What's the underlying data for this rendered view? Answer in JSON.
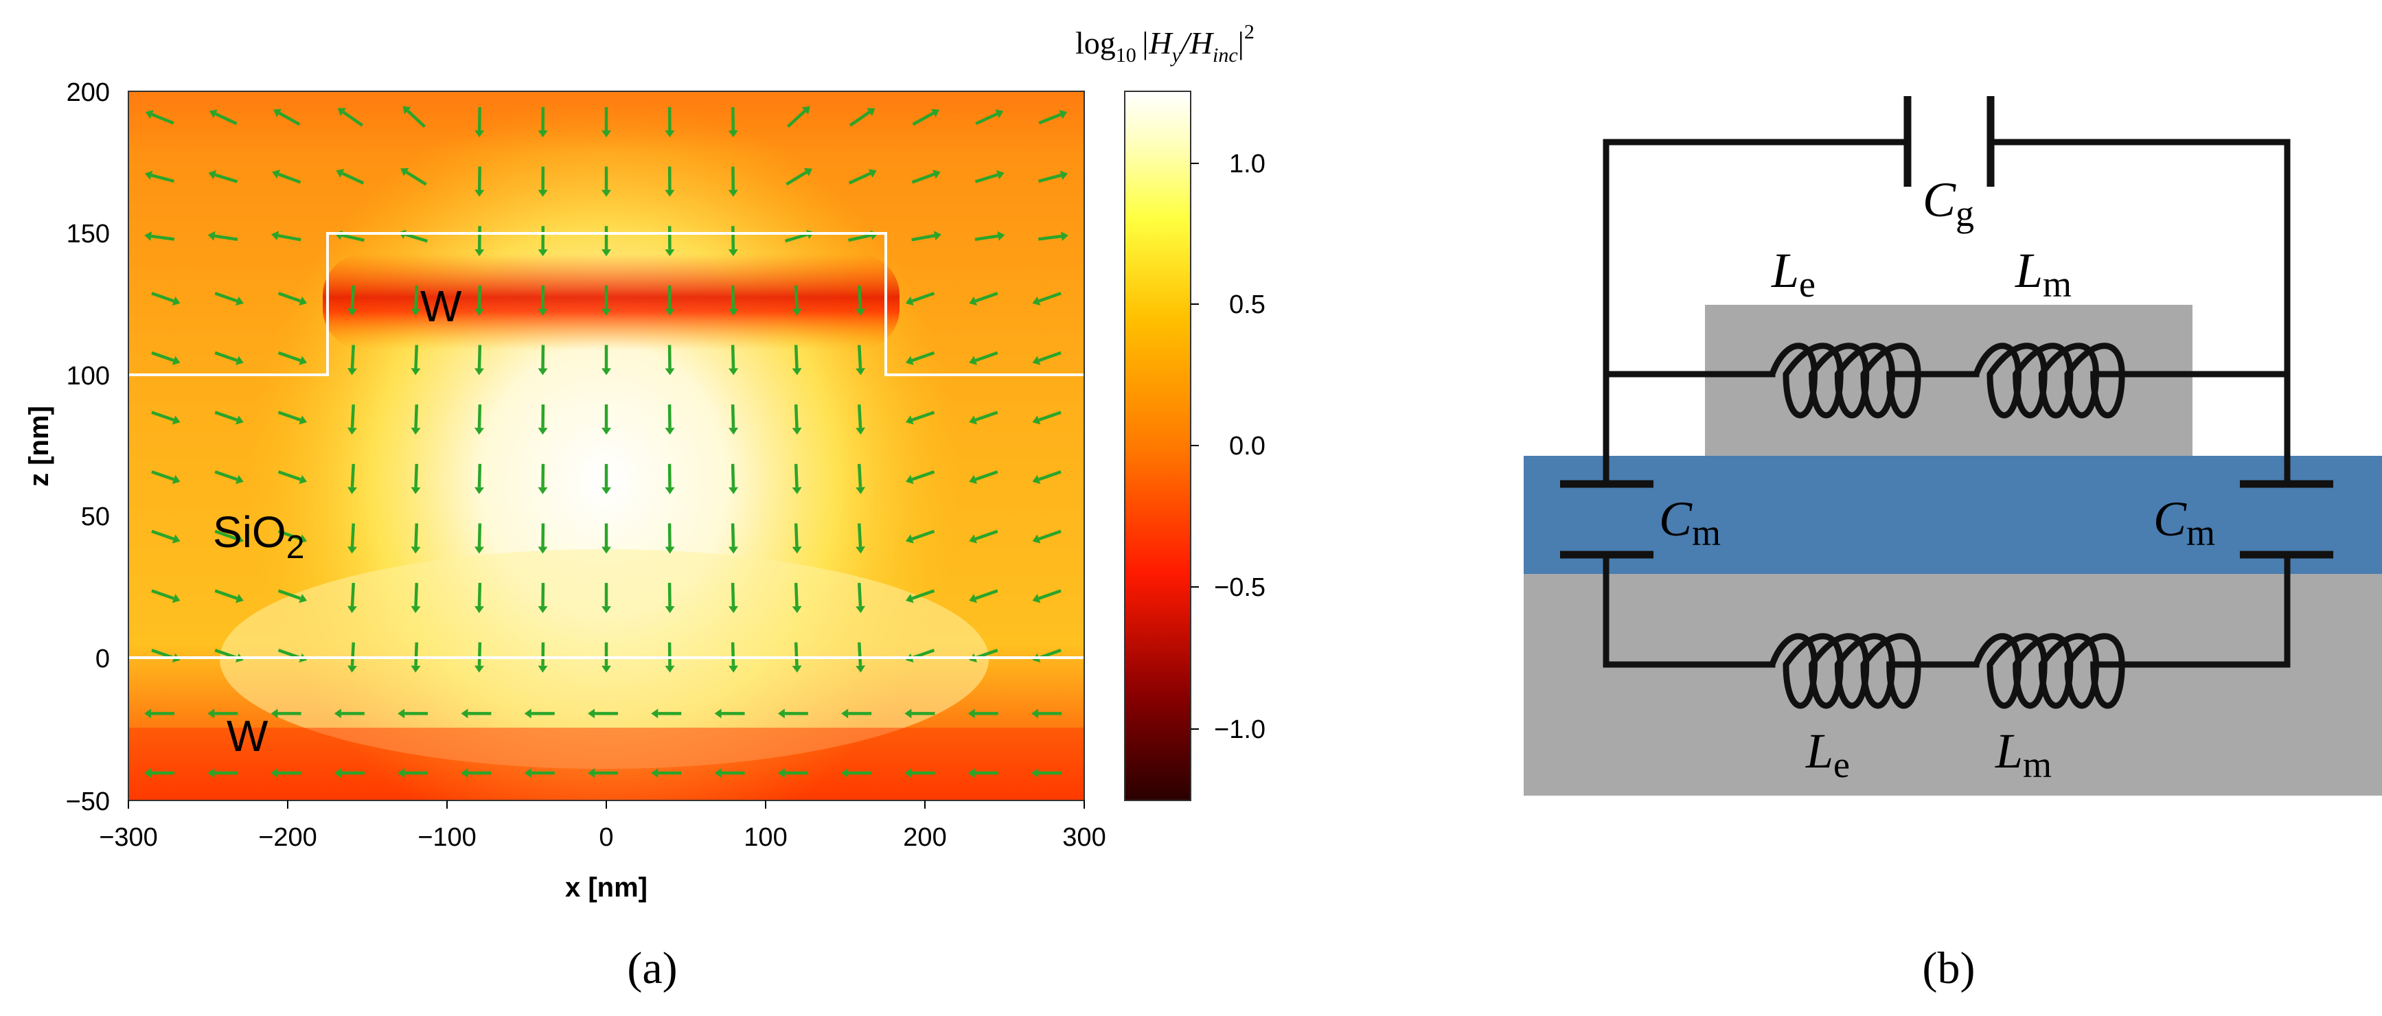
{
  "panel_a": {
    "label": "(a)",
    "x_axis": {
      "title": "x [nm]",
      "ticks": [
        "−300",
        "−200",
        "−100",
        "0",
        "100",
        "200",
        "300"
      ]
    },
    "y_axis": {
      "title": "z [nm]",
      "ticks": [
        "−50",
        "0",
        "50",
        "100",
        "150",
        "200"
      ]
    },
    "regions": {
      "top_metal": "W",
      "dielectric": "SiO",
      "dielectric_sub": "2",
      "bottom_metal": "W"
    },
    "colorbar": {
      "title_prefix": "log",
      "title_base": "10",
      "title_main": "|H",
      "title_y": "y",
      "title_slash": "/H",
      "title_inc": "inc",
      "title_close": "|",
      "title_power": "2",
      "ticks": [
        "1.0",
        "0.5",
        "0.0",
        "−0.5",
        "−1.0"
      ]
    },
    "colors": {
      "field_low": "#3a0000",
      "field_mid": "#ff2a00",
      "field_high": "#ffffff",
      "arrows": "#2aa52a",
      "outline": "#ffffff"
    }
  },
  "panel_b": {
    "label": "(b)",
    "components": {
      "cg": {
        "symbol": "C",
        "sub": "g"
      },
      "le_top": {
        "symbol": "L",
        "sub": "e"
      },
      "lm_top": {
        "symbol": "L",
        "sub": "m"
      },
      "cm_left": {
        "symbol": "C",
        "sub": "m"
      },
      "cm_right": {
        "symbol": "C",
        "sub": "m"
      },
      "le_bottom": {
        "symbol": "L",
        "sub": "e"
      },
      "lm_bottom": {
        "symbol": "L",
        "sub": "m"
      }
    },
    "colors": {
      "metal": "#a9a9a9",
      "dielectric": "#4a7db0",
      "wire": "#111111"
    }
  }
}
